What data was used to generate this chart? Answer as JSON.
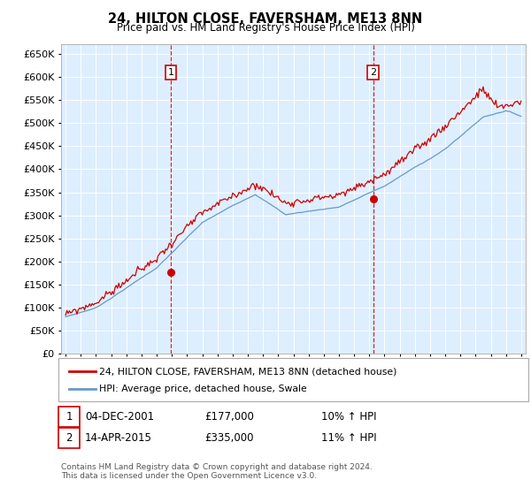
{
  "title": "24, HILTON CLOSE, FAVERSHAM, ME13 8NN",
  "subtitle": "Price paid vs. HM Land Registry's House Price Index (HPI)",
  "legend_line1": "24, HILTON CLOSE, FAVERSHAM, ME13 8NN (detached house)",
  "legend_line2": "HPI: Average price, detached house, Swale",
  "transaction1_date": "04-DEC-2001",
  "transaction1_price": 177000,
  "transaction1_label": "10% ↑ HPI",
  "transaction2_date": "14-APR-2015",
  "transaction2_price": 335000,
  "transaction2_label": "11% ↑ HPI",
  "footnote1": "Contains HM Land Registry data © Crown copyright and database right 2024.",
  "footnote2": "This data is licensed under the Open Government Licence v3.0.",
  "red_color": "#cc0000",
  "blue_color": "#6699cc",
  "background_color": "#ddeeff",
  "grid_color": "#ffffff",
  "ylim_min": 0,
  "ylim_max": 670000,
  "xlim_min": 1994.7,
  "xlim_max": 2025.3,
  "t1_year": 2001.92,
  "t2_year": 2015.25
}
